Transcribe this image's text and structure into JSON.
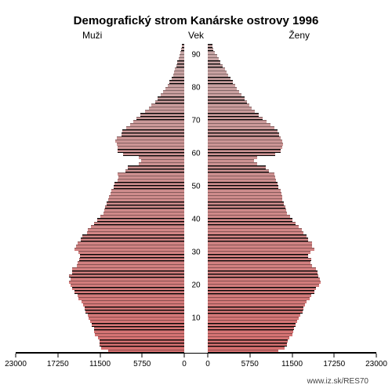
{
  "chart": {
    "type": "population-pyramid",
    "title": "Demografický strom Kanárske ostrovy 1996",
    "title_fontsize": 15,
    "title_fontweight": "bold",
    "left_label": "Muži",
    "center_label": "Vek",
    "right_label": "Ženy",
    "label_fontsize": 12,
    "source_url": "www.iz.sk/RES70",
    "background_color": "#ffffff",
    "bar_stroke_color": "#000000",
    "shadow_color": "#000000",
    "x_axis": {
      "max": 23000,
      "ticks_left": [
        23000,
        17250,
        11500,
        5750,
        0
      ],
      "ticks_right": [
        0,
        5750,
        11500,
        17250,
        23000
      ],
      "fontsize": 10
    },
    "y_axis": {
      "ticks": [
        10,
        20,
        30,
        40,
        50,
        60,
        70,
        80,
        90
      ],
      "fontsize": 10
    },
    "gradient": {
      "bottom_color": "#d67070",
      "top_color": "#c7a7a7"
    },
    "ages": [
      0,
      1,
      2,
      3,
      4,
      5,
      6,
      7,
      8,
      9,
      10,
      11,
      12,
      13,
      14,
      15,
      16,
      17,
      18,
      19,
      20,
      21,
      22,
      23,
      24,
      25,
      26,
      27,
      28,
      29,
      30,
      31,
      32,
      33,
      34,
      35,
      36,
      37,
      38,
      39,
      40,
      41,
      42,
      43,
      44,
      45,
      46,
      47,
      48,
      49,
      50,
      51,
      52,
      53,
      54,
      55,
      56,
      57,
      58,
      59,
      60,
      61,
      62,
      63,
      64,
      65,
      66,
      67,
      68,
      69,
      70,
      71,
      72,
      73,
      74,
      75,
      76,
      77,
      78,
      79,
      80,
      81,
      82,
      83,
      84,
      85,
      86,
      87,
      88,
      89,
      90,
      91,
      92,
      93
    ],
    "male": [
      10400,
      11300,
      11550,
      11600,
      11750,
      12150,
      12300,
      12350,
      12600,
      12800,
      13000,
      13200,
      13450,
      13600,
      13800,
      14000,
      14400,
      14600,
      15000,
      15250,
      15550,
      15750,
      15550,
      15700,
      15300,
      15300,
      14700,
      14600,
      14300,
      14250,
      14450,
      15000,
      14800,
      14600,
      14100,
      13900,
      13300,
      13200,
      12700,
      12300,
      11900,
      11500,
      11050,
      10900,
      10800,
      10550,
      10350,
      10250,
      10100,
      10000,
      9600,
      9500,
      9100,
      9000,
      9050,
      8000,
      7700,
      6250,
      5850,
      6250,
      8300,
      9050,
      9100,
      9150,
      9400,
      9150,
      8600,
      8500,
      7950,
      7400,
      7000,
      6500,
      5950,
      5400,
      4800,
      4500,
      4000,
      3650,
      3250,
      2850,
      2550,
      2300,
      2000,
      1750,
      1550,
      1400,
      1250,
      1100,
      950,
      800,
      650,
      550,
      450,
      350
    ],
    "female": [
      9600,
      10500,
      10800,
      10950,
      11100,
      11500,
      11700,
      11750,
      12000,
      12200,
      12400,
      12600,
      12900,
      13050,
      13300,
      13500,
      13900,
      14150,
      14550,
      14800,
      15200,
      15400,
      15350,
      15100,
      15000,
      14800,
      14200,
      14000,
      14100,
      13650,
      14000,
      14500,
      14250,
      14200,
      13650,
      13500,
      13000,
      12800,
      12400,
      12000,
      11600,
      11250,
      10800,
      10700,
      10600,
      10400,
      10200,
      10150,
      10050,
      9950,
      9650,
      9550,
      9300,
      9250,
      9050,
      8300,
      7950,
      6700,
      6300,
      6750,
      9150,
      10000,
      10200,
      10250,
      10200,
      10000,
      9700,
      9550,
      9100,
      8600,
      8000,
      7500,
      6950,
      6450,
      5950,
      5650,
      5300,
      5000,
      4650,
      4300,
      4000,
      3700,
      3400,
      3100,
      2800,
      2550,
      2300,
      2000,
      1750,
      1500,
      1250,
      1000,
      800,
      600
    ],
    "male_prev": [
      10100,
      10800,
      11050,
      11100,
      11250,
      11650,
      11800,
      11850,
      12100,
      12300,
      12500,
      12700,
      12950,
      13100,
      13300,
      13500,
      13900,
      14100,
      14500,
      14750,
      15050,
      15250,
      15050,
      15200,
      14800,
      14800,
      14200,
      14100,
      13800,
      13750,
      13950,
      14500,
      14300,
      14100,
      13600,
      13400,
      12800,
      12700,
      12200,
      11800,
      11400,
      11000,
      10550,
      10400,
      10300,
      10050,
      9850,
      9750,
      9600,
      9500,
      9100,
      9000,
      8600,
      8500,
      8550,
      7500,
      7200,
      5800,
      5400,
      5800,
      7850,
      8600,
      8650,
      8700,
      8950,
      8700,
      8150,
      8050,
      7500,
      6950,
      6550,
      6050,
      5500,
      4950,
      4350,
      4050,
      3550,
      3200,
      2800,
      2400,
      2100,
      1850,
      1550,
      1300,
      1100,
      950,
      800,
      700,
      600,
      500,
      400,
      300,
      250,
      200
    ],
    "female_prev": [
      9300,
      9900,
      10300,
      10450,
      10600,
      11000,
      11200,
      11250,
      11500,
      11700,
      11900,
      12100,
      12400,
      12550,
      12800,
      13000,
      13400,
      13650,
      14050,
      14300,
      14700,
      14900,
      14850,
      14600,
      14500,
      14300,
      13700,
      13500,
      13600,
      13150,
      13500,
      14000,
      13750,
      13700,
      13150,
      13000,
      12500,
      12300,
      11900,
      11500,
      11100,
      10750,
      10300,
      10200,
      10100,
      9900,
      9700,
      9650,
      9550,
      9450,
      9150,
      9050,
      8800,
      8750,
      8550,
      7800,
      7450,
      6200,
      5800,
      6250,
      8650,
      9500,
      9700,
      9750,
      9700,
      9500,
      9200,
      9050,
      8600,
      8100,
      7500,
      7000,
      6450,
      5950,
      5450,
      5150,
      4800,
      4500,
      4150,
      3800,
      3500,
      3200,
      2900,
      2600,
      2300,
      2050,
      1800,
      1500,
      1250,
      1050,
      850,
      650,
      500,
      400
    ]
  }
}
